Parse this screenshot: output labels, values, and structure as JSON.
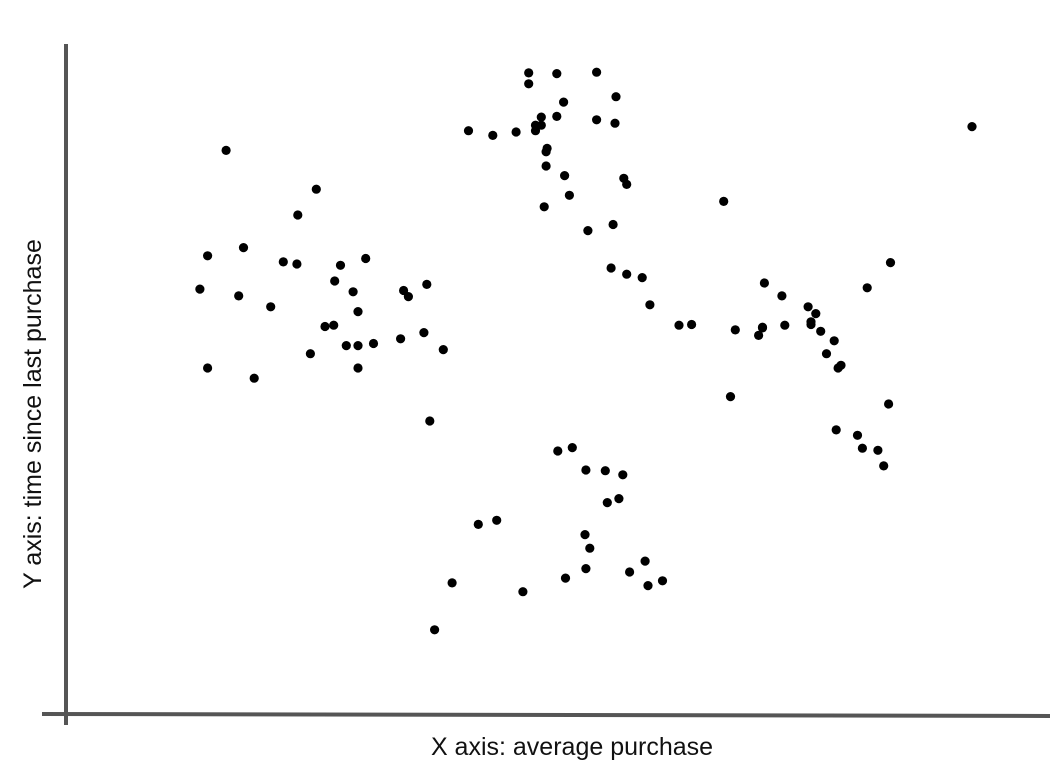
{
  "colors": {
    "axis": "#555555",
    "point": "#000000",
    "background": "#ffffff"
  },
  "chart_data": {
    "type": "scatter",
    "title": "",
    "xlabel": "X axis: average purchase",
    "ylabel": "Y axis: time since last purchase",
    "xlim": [
      0,
      100
    ],
    "ylim": [
      0,
      100
    ],
    "grid": false,
    "ticks": false,
    "series": [
      {
        "x": [
          16.5,
          13.8,
          17.8,
          18.3,
          14.6,
          14.6,
          19.4,
          21.1,
          23.8,
          23.9,
          22.4,
          25.8,
          29.6,
          30.1,
          30.1,
          30.1,
          28.3,
          27.7,
          27.6,
          26.7,
          28.9,
          30.9,
          34.5,
          34.8,
          35.3,
          37.5,
          25.2,
          36.9,
          38.9,
          31.7,
          37.2,
          41.5,
          44.0,
          46.4,
          47.7,
          47.7,
          48.4,
          48.4,
          49.0,
          49.0,
          49.5,
          49.5,
          49.6,
          50.6,
          50.6,
          51.3,
          51.4,
          51.9,
          54.7,
          54.7,
          56.7,
          56.6,
          57.8,
          57.8,
          56.2,
          59.4,
          57.5,
          49.3,
          53.8,
          56.4,
          60.2,
          63.2,
          64.5,
          50.7,
          53.6,
          52.2,
          55.6,
          57.4,
          55.8,
          57.0,
          42.5,
          44.4,
          53.5,
          54.0,
          53.6,
          58.1,
          59.7,
          61.5,
          60.0,
          39.8,
          47.1,
          51.5,
          38.0,
          67.8,
          69.0,
          71.8,
          71.8,
          74.1,
          76.8,
          76.8,
          79.9,
          79.6,
          79.4,
          81.6,
          82.1,
          83.7,
          84.3,
          84.8,
          78.4,
          77.8,
          76.5,
          77.3,
          79.2,
          82.6,
          85.0,
          73.8,
          71.4,
          68.5,
          72.0,
          93.4
        ],
        "y": [
          82.0,
          61.6,
          60.6,
          67.7,
          66.5,
          50.0,
          48.5,
          59.0,
          65.3,
          72.5,
          65.6,
          76.3,
          61.2,
          58.3,
          53.3,
          50.0,
          65.1,
          62.8,
          56.3,
          56.1,
          53.3,
          66.1,
          54.3,
          61.4,
          60.5,
          42.2,
          52.1,
          55.2,
          52.7,
          53.6,
          62.3,
          84.9,
          84.2,
          84.7,
          91.8,
          93.4,
          85.7,
          84.9,
          85.7,
          86.9,
          79.7,
          81.8,
          82.3,
          93.3,
          87.0,
          89.1,
          78.3,
          75.4,
          93.5,
          86.5,
          89.9,
          86.0,
          77.0,
          63.8,
          64.7,
          63.3,
          77.9,
          73.7,
          70.2,
          71.1,
          59.3,
          56.3,
          56.4,
          37.8,
          35.0,
          38.3,
          34.9,
          34.3,
          30.2,
          30.8,
          27.0,
          27.6,
          25.5,
          23.5,
          20.5,
          20.0,
          21.6,
          18.7,
          18.0,
          18.4,
          17.1,
          19.1,
          11.5,
          74.5,
          55.6,
          55.9,
          56.0,
          56.3,
          56.8,
          56.4,
          50.4,
          50.0,
          40.9,
          40.1,
          38.2,
          37.9,
          35.6,
          44.7,
          52.1,
          55.4,
          59.0,
          58.0,
          54.0,
          61.8,
          65.5,
          60.6,
          54.8,
          45.8,
          62.5,
          85.5
        ]
      }
    ]
  }
}
